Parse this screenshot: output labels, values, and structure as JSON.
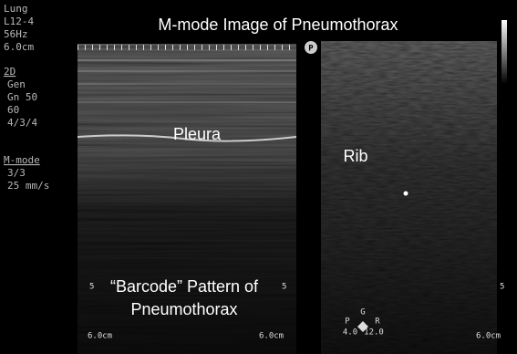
{
  "title": "M-mode Image of Pneumothorax",
  "settings": [
    "Lung",
    "L12-4",
    "56Hz",
    "6.0cm"
  ],
  "settings_2d": {
    "header": "2D",
    "lines": [
      "Gen",
      "Gn 50",
      "60",
      "4/3/4"
    ]
  },
  "settings_mmode": {
    "header": "M-mode",
    "lines": [
      "3/3",
      "25 mm/s"
    ]
  },
  "labels": {
    "pleura": "Pleura",
    "rib": "Rib",
    "barcode": [
      "“Barcode” Pattern of",
      "Pneumothorax"
    ]
  },
  "depth_markers": {
    "left_mmode": "5",
    "right_mmode": "5",
    "bmode": "5"
  },
  "depth_scale": {
    "mmode_left": "6.0cm",
    "mmode_right": "6.0cm",
    "bmode": "6.0cm"
  },
  "probe_icon": "P",
  "orientation": {
    "g": "G",
    "p": "P",
    "r": "R",
    "left_value": "4.0",
    "right_value": "12.0"
  }
}
